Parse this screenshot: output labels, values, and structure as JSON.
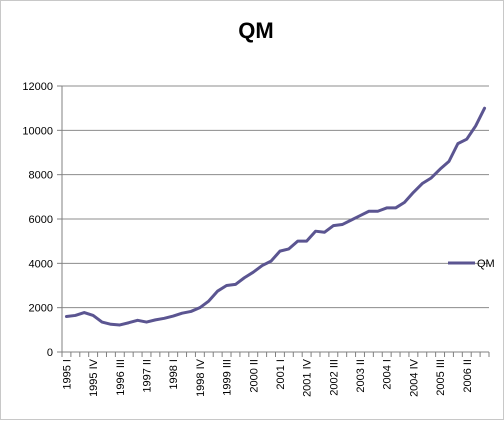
{
  "chart_data": {
    "type": "line",
    "title": "QM",
    "xlabel": "",
    "ylabel": "",
    "ylim": [
      0,
      12000
    ],
    "yticks": [
      0,
      2000,
      4000,
      6000,
      8000,
      10000,
      12000
    ],
    "grid": true,
    "legend_position": "right",
    "line_color": "#5b5591",
    "categories": [
      "1995 I",
      "1995 II",
      "1995 III",
      "1995 IV",
      "1996 I",
      "1996 II",
      "1996 III",
      "1996 IV",
      "1997 I",
      "1997 II",
      "1997 III",
      "1997 IV",
      "1998 I",
      "1998 II",
      "1998 III",
      "1998 IV",
      "1999 I",
      "1999 II",
      "1999 III",
      "1999 IV",
      "2000 I",
      "2000 II",
      "2000 III",
      "2000 IV",
      "2001 I",
      "2001 II",
      "2001 III",
      "2001 IV",
      "2002 I",
      "2002 II",
      "2002 III",
      "2002 IV",
      "2003 I",
      "2003 II",
      "2003 III",
      "2003 IV",
      "2004 I",
      "2004 II",
      "2004 III",
      "2004 IV",
      "2005 I",
      "2005 II",
      "2005 III",
      "2005 IV",
      "2006 I",
      "2006 II",
      "2006 III",
      "2006 IV"
    ],
    "tick_labels": [
      "1995 I",
      "1995 IV",
      "1996 III",
      "1997 II",
      "1998 I",
      "1998 IV",
      "1999 III",
      "2000 II",
      "2001 I",
      "2001 IV",
      "2002 III",
      "2003 II",
      "2004 I",
      "2004 IV",
      "2005 III",
      "2006 II"
    ],
    "series": [
      {
        "name": "QM",
        "values": [
          1600,
          1650,
          1780,
          1650,
          1350,
          1250,
          1220,
          1320,
          1430,
          1350,
          1450,
          1520,
          1620,
          1750,
          1830,
          2000,
          2300,
          2750,
          3000,
          3050,
          3350,
          3600,
          3900,
          4100,
          4550,
          4650,
          5000,
          5000,
          5450,
          5400,
          5700,
          5750,
          5950,
          6150,
          6350,
          6350,
          6500,
          6500,
          6750,
          7200,
          7600,
          7850,
          8250,
          8600,
          9400,
          9600,
          10200,
          11000
        ]
      }
    ]
  }
}
